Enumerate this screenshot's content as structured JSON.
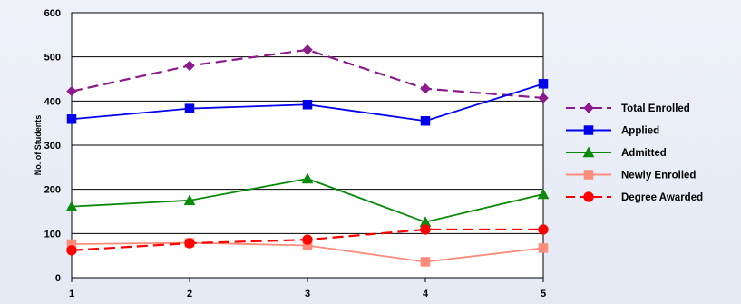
{
  "chart_data": {
    "type": "line",
    "title": "",
    "xlabel": "",
    "ylabel": "No. of Students",
    "x": [
      "1",
      "2",
      "3",
      "4",
      "5"
    ],
    "ylim": [
      0,
      600
    ],
    "yticks": [
      "0",
      "100",
      "200",
      "300",
      "400",
      "500",
      "600"
    ],
    "grid": "horizontal",
    "legend_position": "right",
    "series": [
      {
        "name": "Total Enrolled",
        "values": [
          422,
          480,
          516,
          428,
          407
        ],
        "color": "#8b1a8b",
        "marker": "diamond",
        "dash": "dashed"
      },
      {
        "name": "Applied",
        "values": [
          359,
          383,
          392,
          355,
          439
        ],
        "color": "#0000ee",
        "marker": "square",
        "dash": "solid"
      },
      {
        "name": "Admitted",
        "values": [
          161,
          175,
          224,
          126,
          189
        ],
        "color": "#0a8a0a",
        "marker": "triangle",
        "dash": "solid"
      },
      {
        "name": "Newly Enrolled",
        "values": [
          76,
          79,
          73,
          36,
          67
        ],
        "color": "#ff8c7a",
        "marker": "square",
        "dash": "solid"
      },
      {
        "name": "Degree Awarded",
        "values": [
          62,
          78,
          86,
          109,
          109
        ],
        "color": "#ff0000",
        "marker": "circle",
        "dash": "dashed"
      }
    ]
  }
}
